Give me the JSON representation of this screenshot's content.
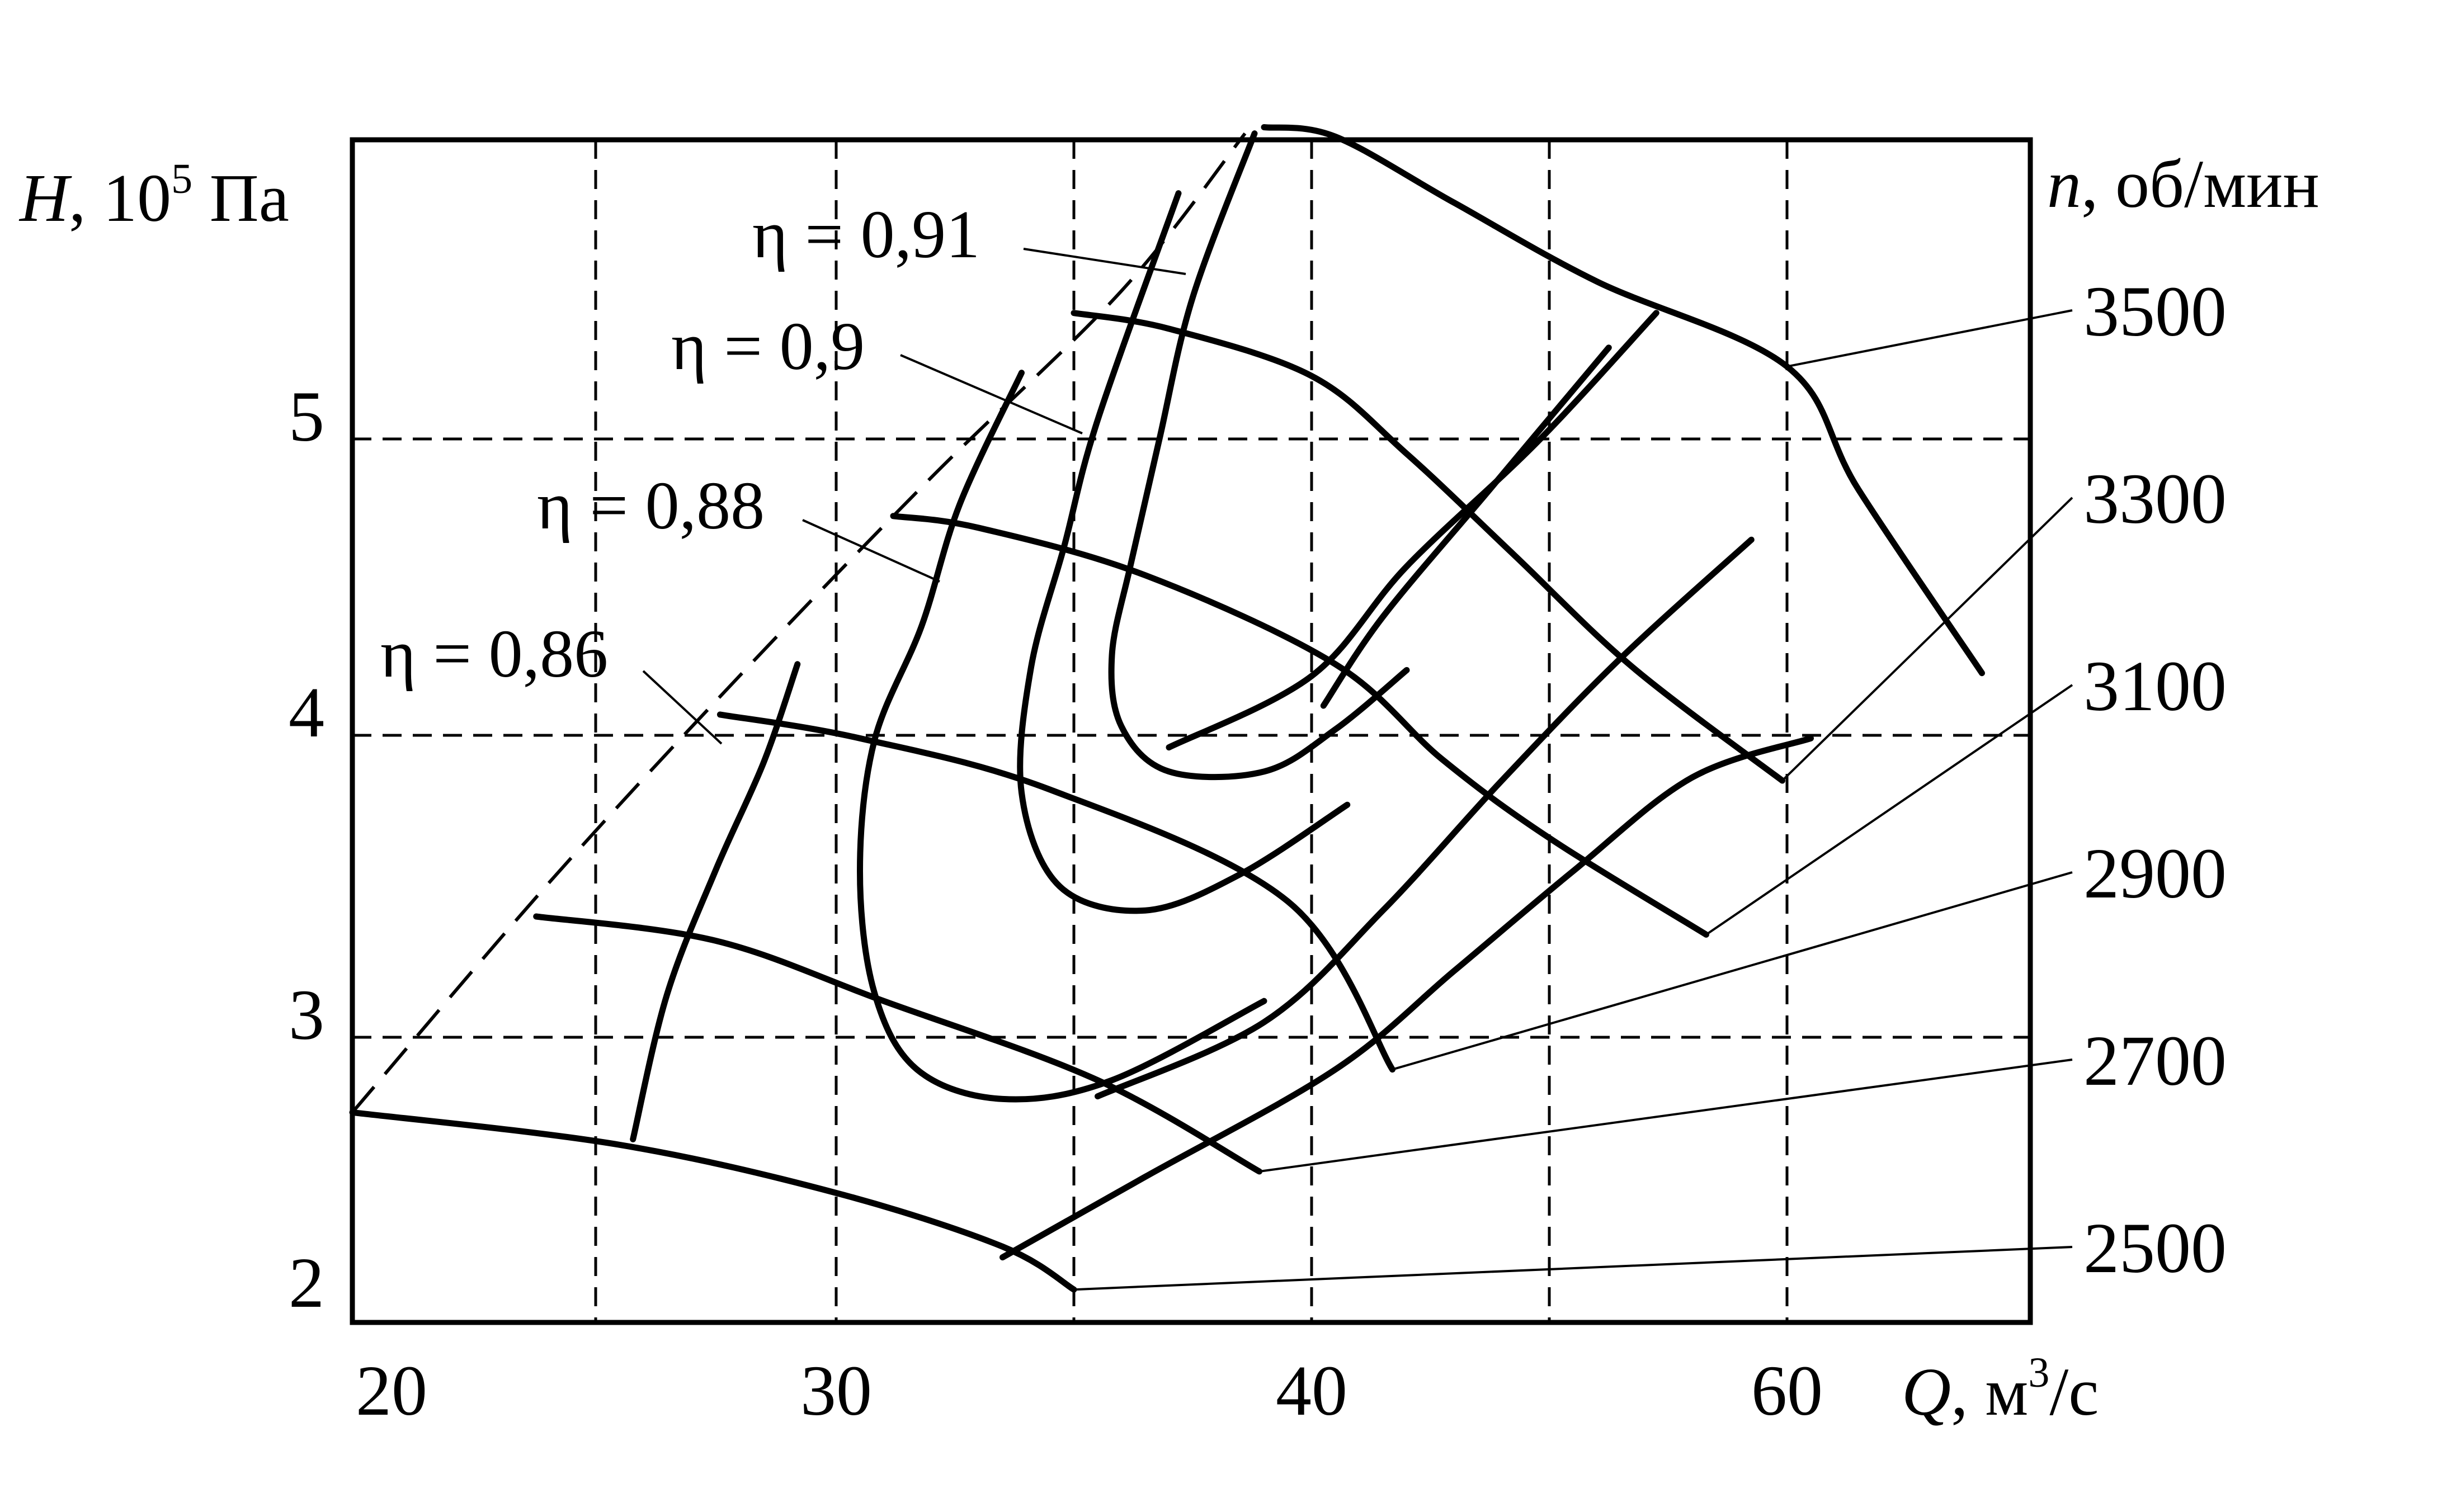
{
  "chart_data": {
    "type": "line",
    "title": "",
    "xlabel": {
      "var": "Q",
      "sep": ", ",
      "unit_base": "м",
      "unit_exp": "3",
      "unit_tail": "/с"
    },
    "ylabel": {
      "var": "H",
      "sep": ", ",
      "unit_base": "10",
      "unit_exp": "5",
      "unit_tail": " Па"
    },
    "right_label": {
      "var": "n",
      "tail": ", об/мин"
    },
    "x_ticks": [
      "20",
      "30",
      "40",
      "60"
    ],
    "y_ticks": [
      "2",
      "3",
      "4",
      "5"
    ],
    "xlim": [
      20,
      70
    ],
    "ylim": [
      1.95,
      5.95
    ],
    "grid": true,
    "speed_lines": [
      {
        "label": "2500",
        "anchor": [
          35,
          2.06
        ],
        "points": [
          [
            20,
            2.72
          ],
          [
            25.5,
            2.6
          ],
          [
            30,
            2.42
          ],
          [
            33.5,
            2.22
          ],
          [
            35,
            2.06
          ]
        ]
      },
      {
        "label": "2700",
        "anchor": [
          38.9,
          2.5
        ],
        "points": [
          [
            23.8,
            3.4
          ],
          [
            27.5,
            3.32
          ],
          [
            31,
            3.12
          ],
          [
            35.5,
            2.84
          ],
          [
            38.9,
            2.5
          ]
        ]
      },
      {
        "label": "2900",
        "anchor": [
          43.4,
          2.88
        ],
        "points": [
          [
            27.6,
            4.07
          ],
          [
            30.5,
            3.99
          ],
          [
            34.5,
            3.82
          ],
          [
            39.5,
            3.45
          ],
          [
            43.4,
            2.88
          ]
        ]
      },
      {
        "label": "3100",
        "anchor": [
          56.6,
          3.34
        ],
        "points": [
          [
            31.2,
            4.74
          ],
          [
            33,
            4.7
          ],
          [
            36.5,
            4.54
          ],
          [
            41,
            4.24
          ],
          [
            45.5,
            3.92
          ],
          [
            50,
            3.66
          ],
          [
            56.6,
            3.34
          ]
        ]
      },
      {
        "label": "3300",
        "anchor": [
          59.8,
          3.85
        ],
        "points": [
          [
            35,
            5.4
          ],
          [
            37,
            5.35
          ],
          [
            40,
            5.2
          ],
          [
            44,
            4.95
          ],
          [
            48.5,
            4.61
          ],
          [
            53.5,
            4.23
          ],
          [
            59.8,
            3.85
          ]
        ]
      },
      {
        "label": "3500",
        "anchor": [
          60,
          5.23
        ],
        "points": [
          [
            39,
            5.99
          ],
          [
            41,
            5.96
          ],
          [
            46,
            5.75
          ],
          [
            52,
            5.5
          ],
          [
            60,
            5.23
          ],
          [
            63,
            4.83
          ],
          [
            68.2,
            4.21
          ]
        ]
      }
    ],
    "boundary_lines": [
      {
        "points": [
          [
            33.5,
            2.18
          ],
          [
            36.5,
            2.48
          ],
          [
            41,
            2.88
          ],
          [
            46,
            3.22
          ],
          [
            51,
            3.55
          ],
          [
            56,
            3.86
          ],
          [
            61,
            3.99
          ]
        ]
      },
      {
        "points": [
          [
            35.5,
            2.78
          ],
          [
            39,
            3.05
          ],
          [
            43,
            3.42
          ],
          [
            48,
            3.85
          ],
          [
            53,
            4.26
          ],
          [
            58.5,
            4.66
          ]
        ]
      },
      {
        "points": [
          [
            37,
            3.96
          ],
          [
            40,
            4.2
          ],
          [
            44,
            4.57
          ],
          [
            49.5,
            4.99
          ],
          [
            54.5,
            5.4
          ]
        ]
      },
      {
        "points": [
          [
            40.5,
            4.1
          ],
          [
            43,
            4.4
          ],
          [
            47.5,
            4.83
          ],
          [
            52.5,
            5.29
          ]
        ]
      }
    ],
    "efficiency_contours": [
      {
        "label": "η = 0,91",
        "points": [
          [
            38.8,
            5.97
          ],
          [
            37.5,
            5.45
          ],
          [
            36.8,
            5.0
          ],
          [
            36.2,
            4.58
          ],
          [
            35.8,
            4.27
          ],
          [
            36,
            4.03
          ],
          [
            37,
            3.88
          ],
          [
            39,
            3.88
          ],
          [
            41,
            4.02
          ],
          [
            44,
            4.22
          ]
        ]
      },
      {
        "label": "η = 0,9",
        "points": [
          [
            37.2,
            5.78
          ],
          [
            35.5,
            5.06
          ],
          [
            34.8,
            4.64
          ],
          [
            34.1,
            4.23
          ],
          [
            33.9,
            3.81
          ],
          [
            34.7,
            3.5
          ],
          [
            36.5,
            3.42
          ],
          [
            38.5,
            3.54
          ],
          [
            41.5,
            3.77
          ]
        ]
      },
      {
        "label": "η = 0,88",
        "points": [
          [
            33.9,
            5.21
          ],
          [
            32.6,
            4.78
          ],
          [
            31.8,
            4.37
          ],
          [
            30.8,
            3.98
          ],
          [
            30.5,
            3.55
          ],
          [
            30.8,
            3.15
          ],
          [
            31.7,
            2.88
          ],
          [
            33.5,
            2.77
          ],
          [
            35.8,
            2.84
          ],
          [
            39,
            3.12
          ]
        ]
      },
      {
        "label": "η = 0,86",
        "points": [
          [
            29.2,
            4.24
          ],
          [
            28.5,
            3.91
          ],
          [
            27.5,
            3.55
          ],
          [
            26.5,
            3.14
          ],
          [
            25.8,
            2.62
          ]
        ]
      }
    ],
    "surge_line": {
      "points": [
        [
          20,
          2.72
        ],
        [
          24,
          3.5
        ],
        [
          28,
          4.2
        ],
        [
          32,
          4.87
        ],
        [
          36,
          5.47
        ],
        [
          38.6,
          5.97
        ]
      ]
    }
  }
}
